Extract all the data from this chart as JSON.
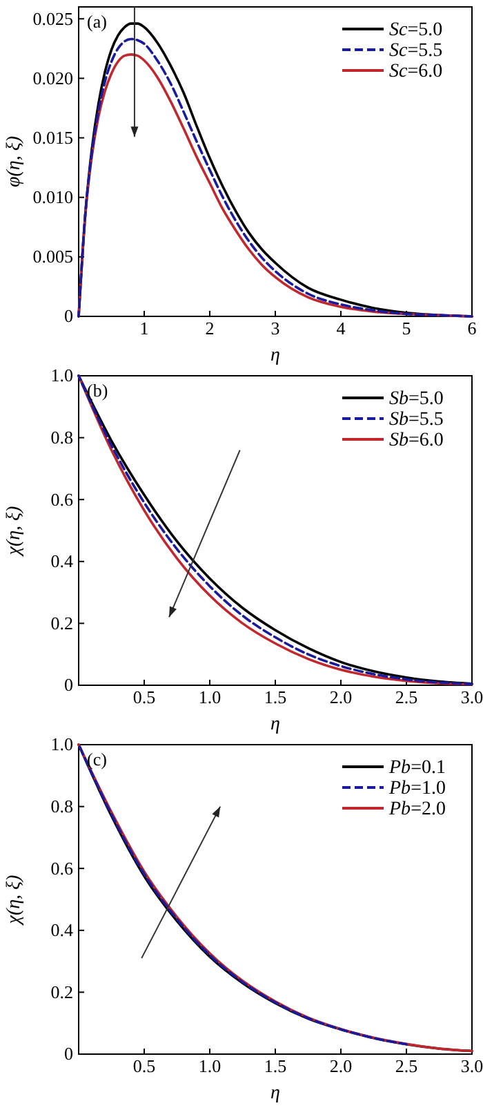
{
  "chart_data": [
    {
      "type": "line",
      "annotations": [
        "(a)"
      ],
      "xlabel": "η",
      "ylabel": "φ(η, ξ)",
      "xlim": [
        0,
        6
      ],
      "ylim": [
        0,
        0.026
      ],
      "xticks": [
        1,
        2,
        3,
        4,
        5,
        6
      ],
      "yticks": [
        0,
        0.005,
        {
          "value": 0.01,
          "label": "0.010"
        },
        0.015,
        {
          "value": 0.02,
          "label": "0.020"
        },
        0.025
      ],
      "legend": "top right",
      "grid": false,
      "x": [
        0,
        0.1,
        0.2,
        0.3,
        0.4,
        0.5,
        0.6,
        0.7,
        0.8,
        0.9,
        1.0,
        1.2,
        1.4,
        1.6,
        1.8,
        2.0,
        2.2,
        2.4,
        2.6,
        2.8,
        3.0,
        3.5,
        4.0,
        4.5,
        5.0,
        5.5,
        6.0
      ],
      "series": [
        {
          "name": "Sc=5.0",
          "color": "#000000",
          "line_style": "solid",
          "values": [
            0,
            0.0085,
            0.014,
            0.0178,
            0.0205,
            0.0224,
            0.0236,
            0.0243,
            0.0246,
            0.0246,
            0.0243,
            0.023,
            0.0211,
            0.0188,
            0.016,
            0.0133,
            0.0109,
            0.0088,
            0.007,
            0.0056,
            0.0045,
            0.0024,
            0.0014,
            0.0007,
            0.0003,
            0.0001,
            0
          ]
        },
        {
          "name": "Sc=5.5",
          "color": "#1a1a9c",
          "line_style": "dashed",
          "values": [
            0,
            0.0085,
            0.0137,
            0.0172,
            0.0197,
            0.0214,
            0.0225,
            0.0231,
            0.0233,
            0.0232,
            0.0229,
            0.0215,
            0.0196,
            0.0172,
            0.0147,
            0.0123,
            0.01,
            0.008,
            0.0063,
            0.0049,
            0.0038,
            0.0019,
            0.001,
            0.0005,
            0.0002,
            0.0001,
            0
          ]
        },
        {
          "name": "Sc=6.0",
          "color": "#c0282d",
          "line_style": "solid",
          "values": [
            0,
            0.0084,
            0.0134,
            0.0167,
            0.0189,
            0.0204,
            0.0214,
            0.0219,
            0.022,
            0.0219,
            0.0215,
            0.0201,
            0.0181,
            0.0158,
            0.0134,
            0.0112,
            0.009,
            0.0072,
            0.0056,
            0.0043,
            0.0033,
            0.0016,
            0.0008,
            0.0004,
            0.0002,
            0.0001,
            0
          ]
        }
      ]
    },
    {
      "type": "line",
      "annotations": [
        "(b)"
      ],
      "xlabel": "η",
      "ylabel": "χ(η, ξ)",
      "xlim": [
        0,
        3
      ],
      "ylim": [
        0,
        1
      ],
      "xticks": [
        0.5,
        {
          "value": 1,
          "label": "1.0"
        },
        1.5,
        {
          "value": 2,
          "label": "2.0"
        },
        2.5,
        {
          "value": 3,
          "label": "3.0"
        }
      ],
      "yticks": [
        0,
        0.2,
        0.4,
        0.6,
        0.8,
        {
          "value": 1,
          "label": "1.0"
        }
      ],
      "legend": "top right",
      "grid": false,
      "x": [
        0,
        0.25,
        0.5,
        0.75,
        1.0,
        1.25,
        1.5,
        1.75,
        2.0,
        2.25,
        2.5,
        2.75,
        3.0
      ],
      "series": [
        {
          "name": "Sb=5.0",
          "color": "#000000",
          "line_style": "solid",
          "values": [
            1,
            0.79,
            0.615,
            0.465,
            0.345,
            0.25,
            0.178,
            0.12,
            0.075,
            0.045,
            0.025,
            0.012,
            0.005
          ]
        },
        {
          "name": "Sb=5.5",
          "color": "#1a1a9c",
          "line_style": "dashed",
          "values": [
            1,
            0.775,
            0.59,
            0.44,
            0.32,
            0.225,
            0.155,
            0.1,
            0.062,
            0.036,
            0.019,
            0.009,
            0.004
          ]
        },
        {
          "name": "Sb=6.0",
          "color": "#c0282d",
          "line_style": "solid",
          "values": [
            1,
            0.76,
            0.565,
            0.41,
            0.29,
            0.2,
            0.135,
            0.085,
            0.05,
            0.028,
            0.014,
            0.006,
            0.003
          ]
        }
      ]
    },
    {
      "type": "line",
      "annotations": [
        "(c)"
      ],
      "xlabel": "η",
      "ylabel": "χ(η, ξ)",
      "xlim": [
        0,
        3
      ],
      "ylim": [
        0,
        1
      ],
      "xticks": [
        0.5,
        {
          "value": 1,
          "label": "1.0"
        },
        1.5,
        {
          "value": 2,
          "label": "2.0"
        },
        2.5,
        {
          "value": 3,
          "label": "3.0"
        }
      ],
      "yticks": [
        0,
        0.2,
        0.4,
        0.6,
        0.8,
        {
          "value": 1,
          "label": "1.0"
        }
      ],
      "legend": "top right",
      "grid": false,
      "x": [
        0,
        0.25,
        0.5,
        0.75,
        1.0,
        1.25,
        1.5,
        1.75,
        2.0,
        2.25,
        2.5,
        2.75,
        3.0
      ],
      "series": [
        {
          "name": "Pb=0.1",
          "color": "#000000",
          "line_style": "solid",
          "values": [
            1,
            0.77,
            0.575,
            0.43,
            0.315,
            0.23,
            0.165,
            0.115,
            0.08,
            0.052,
            0.032,
            0.018,
            0.01
          ]
        },
        {
          "name": "Pb=1.0",
          "color": "#1a1a9c",
          "line_style": "dashed",
          "values": [
            1,
            0.775,
            0.582,
            0.436,
            0.32,
            0.233,
            0.167,
            0.116,
            0.08,
            0.052,
            0.032,
            null,
            null
          ]
        },
        {
          "name": "Pb=2.0",
          "color": "#c0282d",
          "line_style": "solid",
          "values": [
            1,
            0.782,
            0.59,
            0.443,
            0.326,
            0.237,
            0.17,
            0.118,
            0.081,
            0.053,
            0.033,
            0.018,
            0.01
          ]
        }
      ]
    }
  ]
}
